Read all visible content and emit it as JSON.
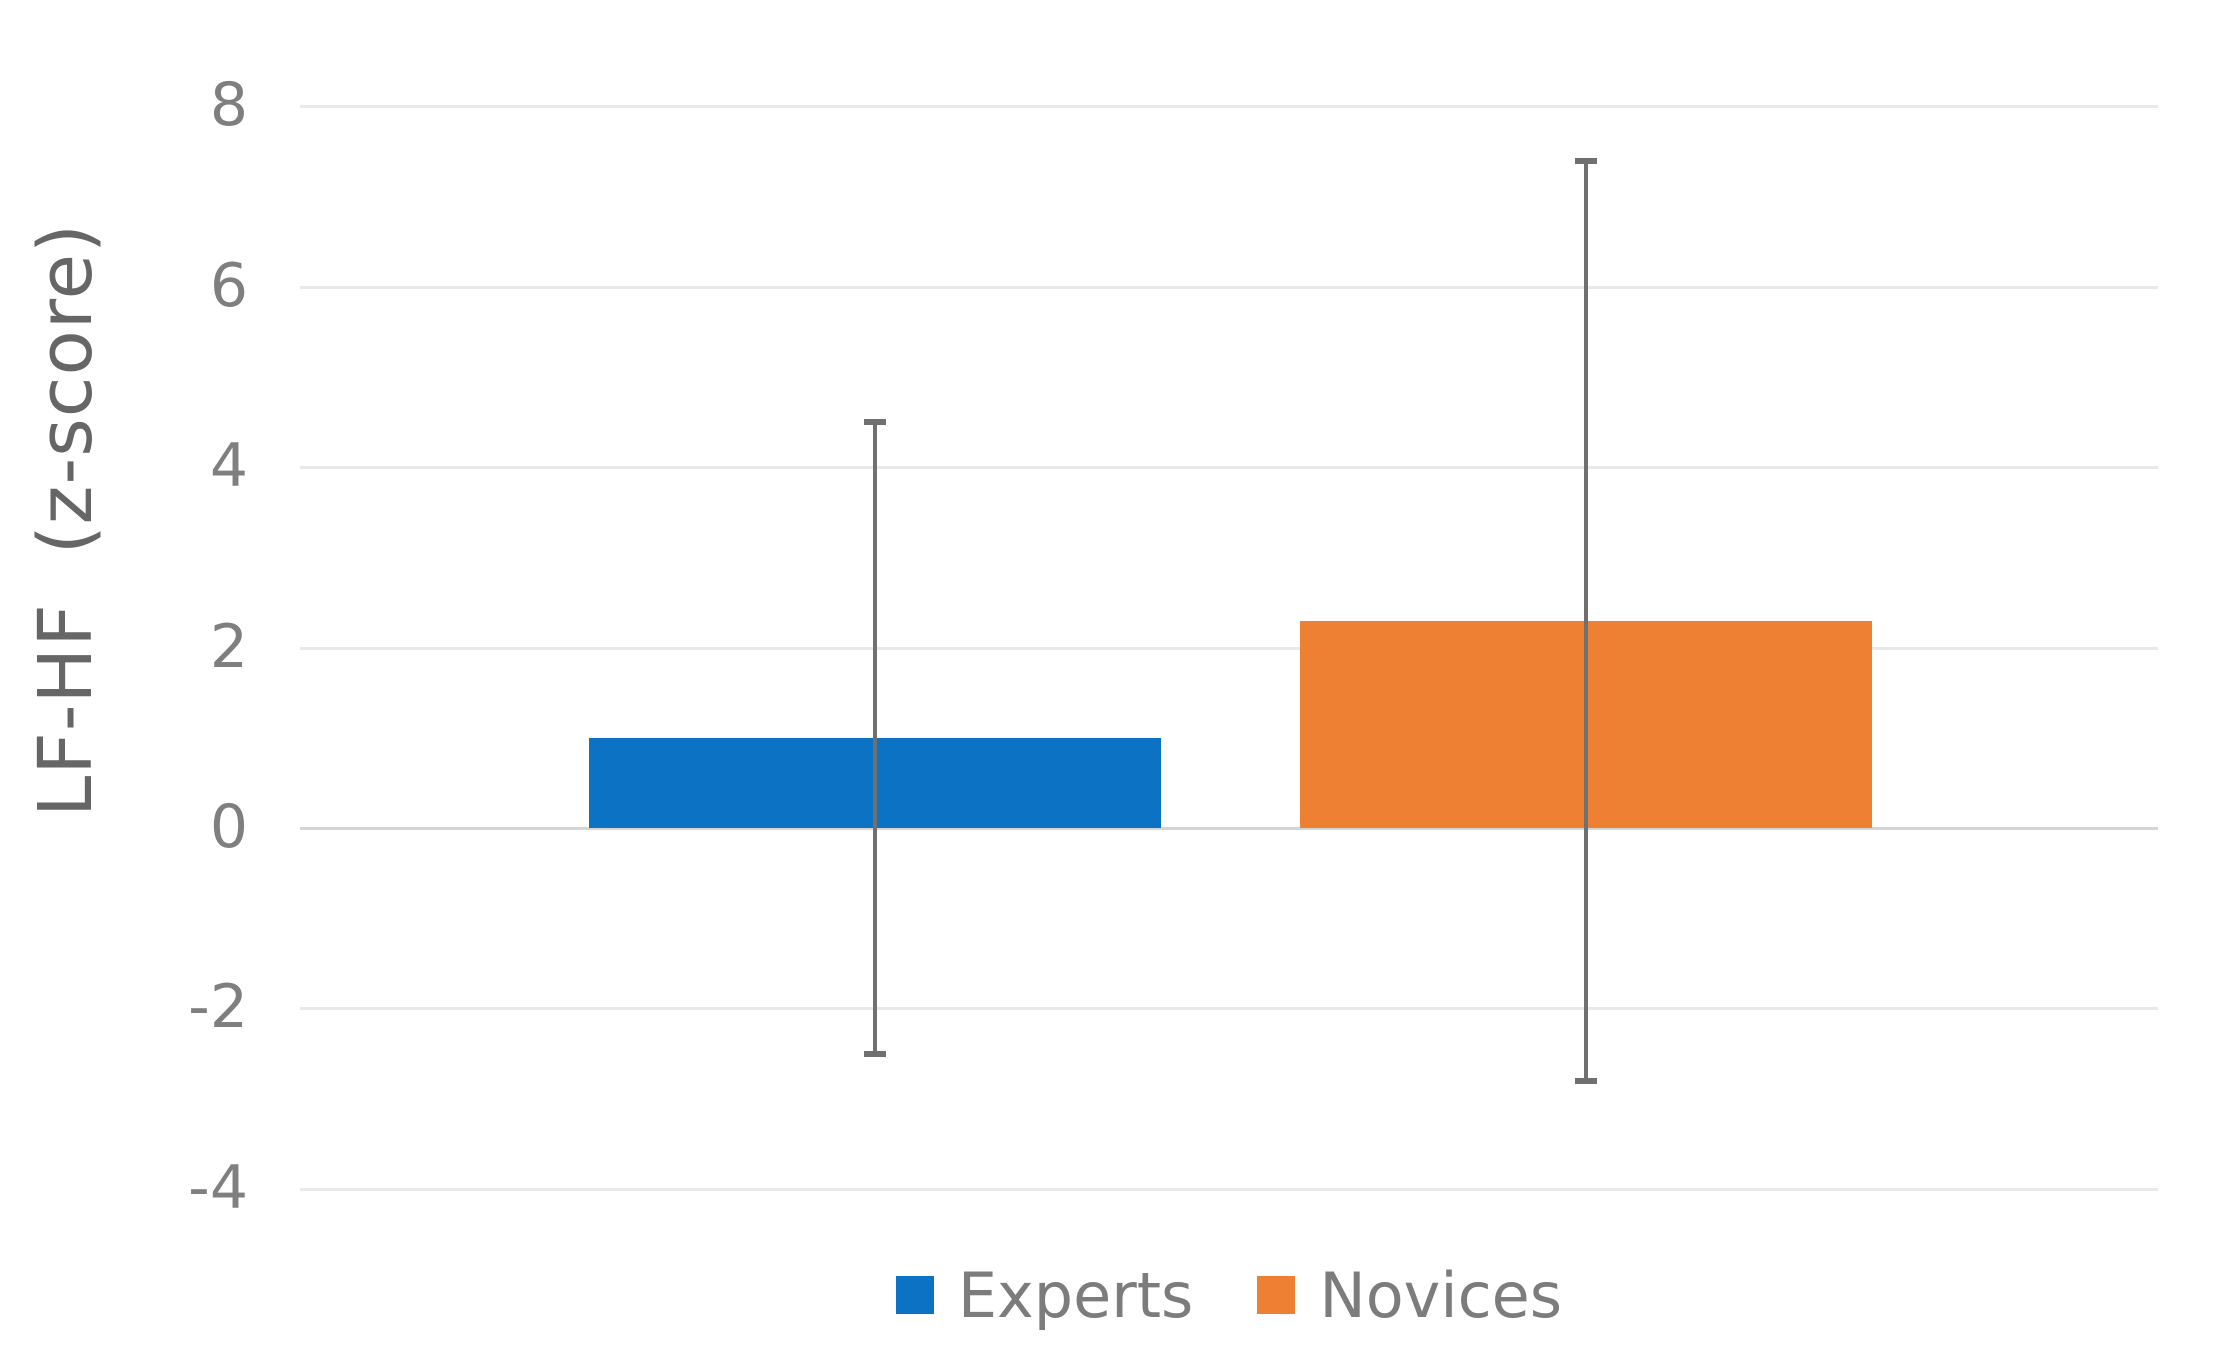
{
  "chart_data": {
    "type": "bar",
    "categories": [
      "Experts",
      "Novices"
    ],
    "values": [
      1.0,
      2.3
    ],
    "error_high": [
      4.5,
      7.4
    ],
    "error_low": [
      -2.5,
      -2.8
    ],
    "title": "",
    "xlabel": "",
    "ylabel": "LF-HF  (z-score)",
    "yticks": [
      8,
      6,
      4,
      2,
      0,
      -2,
      -4
    ],
    "ylim": [
      -4,
      8
    ],
    "grid": "horizontal",
    "legend_position": "bottom",
    "legend": [
      {
        "label": "Experts",
        "color": "#0B72C4"
      },
      {
        "label": "Novices",
        "color": "#ED8033"
      }
    ],
    "colors": {
      "experts_bar": "#0B72C4",
      "novices_bar": "#ED8033",
      "gridline": "#E9E9E9",
      "zero_line": "#D5D5D5",
      "error_bar": "#707070",
      "tick_label": "#7F7F7F",
      "axis_label": "#666666",
      "legend_text": "#7C7C7C"
    }
  }
}
